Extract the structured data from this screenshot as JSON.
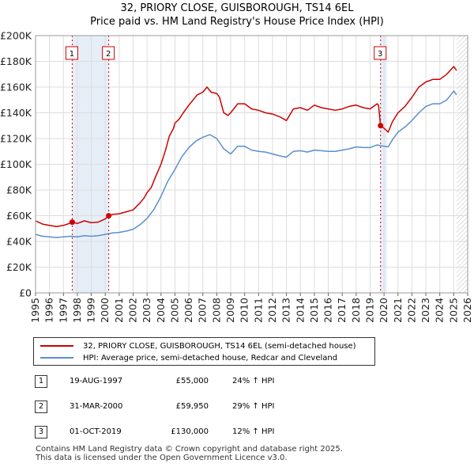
{
  "chart_data": {
    "type": "line",
    "title": "32, PRIORY CLOSE, GUISBOROUGH, TS14 6EL",
    "subtitle": "Price paid vs. HM Land Registry's House Price Index (HPI)",
    "xlabel": "",
    "ylabel": "",
    "xlim": [
      1995,
      2026
    ],
    "ylim": [
      0,
      200000
    ],
    "grid": true,
    "x_ticks": [
      "1995",
      "1996",
      "1997",
      "1998",
      "1999",
      "2000",
      "2001",
      "2002",
      "2003",
      "2004",
      "2005",
      "2006",
      "2007",
      "2008",
      "2009",
      "2010",
      "2011",
      "2012",
      "2013",
      "2014",
      "2015",
      "2016",
      "2017",
      "2018",
      "2019",
      "2020",
      "2021",
      "2022",
      "2023",
      "2024",
      "2025",
      "2026"
    ],
    "y_ticks": [
      "£0",
      "£20K",
      "£40K",
      "£60K",
      "£80K",
      "£100K",
      "£120K",
      "£140K",
      "£160K",
      "£180K",
      "£200K"
    ],
    "y_tick_values": [
      0,
      20000,
      40000,
      60000,
      80000,
      100000,
      120000,
      140000,
      160000,
      180000,
      200000
    ],
    "series": [
      {
        "name": "32, PRIORY CLOSE, GUISBOROUGH, TS14 6EL (semi-detached house)",
        "color": "#cc0000",
        "points": [
          [
            1995.0,
            56000
          ],
          [
            1995.5,
            53500
          ],
          [
            1996.0,
            52500
          ],
          [
            1996.5,
            51500
          ],
          [
            1997.0,
            52500
          ],
          [
            1997.3,
            53500
          ],
          [
            1997.63,
            55000
          ],
          [
            1998.0,
            54000
          ],
          [
            1998.5,
            56000
          ],
          [
            1999.0,
            54500
          ],
          [
            1999.5,
            55000
          ],
          [
            2000.0,
            57500
          ],
          [
            2000.25,
            59950
          ],
          [
            2000.5,
            61000
          ],
          [
            2001.0,
            61500
          ],
          [
            2001.5,
            63000
          ],
          [
            2002.0,
            64500
          ],
          [
            2002.5,
            70000
          ],
          [
            2002.8,
            74000
          ],
          [
            2003.0,
            78000
          ],
          [
            2003.3,
            82000
          ],
          [
            2003.6,
            90000
          ],
          [
            2004.0,
            100000
          ],
          [
            2004.3,
            110000
          ],
          [
            2004.6,
            122000
          ],
          [
            2004.9,
            128000
          ],
          [
            2005.0,
            132000
          ],
          [
            2005.3,
            135000
          ],
          [
            2005.6,
            140000
          ],
          [
            2006.0,
            146000
          ],
          [
            2006.3,
            150000
          ],
          [
            2006.6,
            154000
          ],
          [
            2007.0,
            156000
          ],
          [
            2007.3,
            160000
          ],
          [
            2007.6,
            156000
          ],
          [
            2008.0,
            155000
          ],
          [
            2008.2,
            152000
          ],
          [
            2008.5,
            140000
          ],
          [
            2008.8,
            138000
          ],
          [
            2009.0,
            140000
          ],
          [
            2009.5,
            147000
          ],
          [
            2010.0,
            147000
          ],
          [
            2010.5,
            143000
          ],
          [
            2011.0,
            142000
          ],
          [
            2011.5,
            140000
          ],
          [
            2012.0,
            139000
          ],
          [
            2012.5,
            137000
          ],
          [
            2013.0,
            134000
          ],
          [
            2013.5,
            143000
          ],
          [
            2014.0,
            144000
          ],
          [
            2014.5,
            142000
          ],
          [
            2015.0,
            146000
          ],
          [
            2015.5,
            144000
          ],
          [
            2016.0,
            143000
          ],
          [
            2016.5,
            142000
          ],
          [
            2017.0,
            143000
          ],
          [
            2017.5,
            145000
          ],
          [
            2018.0,
            146000
          ],
          [
            2018.5,
            144000
          ],
          [
            2019.0,
            143000
          ],
          [
            2019.5,
            147000
          ],
          [
            2019.6,
            146000
          ],
          [
            2019.75,
            130000
          ],
          [
            2020.0,
            128000
          ],
          [
            2020.3,
            125000
          ],
          [
            2020.6,
            133000
          ],
          [
            2021.0,
            140000
          ],
          [
            2021.5,
            145000
          ],
          [
            2022.0,
            152000
          ],
          [
            2022.5,
            160000
          ],
          [
            2023.0,
            164000
          ],
          [
            2023.5,
            166000
          ],
          [
            2024.0,
            166000
          ],
          [
            2024.5,
            170000
          ],
          [
            2025.0,
            176000
          ],
          [
            2025.2,
            173000
          ]
        ]
      },
      {
        "name": "HPI: Average price, semi-detached house, Redcar and Cleveland",
        "color": "#5b8fcc",
        "points": [
          [
            1995.0,
            45500
          ],
          [
            1995.5,
            44000
          ],
          [
            1996.0,
            43500
          ],
          [
            1996.5,
            43000
          ],
          [
            1997.0,
            43500
          ],
          [
            1997.5,
            44000
          ],
          [
            1998.0,
            43500
          ],
          [
            1998.5,
            44500
          ],
          [
            1999.0,
            44000
          ],
          [
            1999.5,
            44500
          ],
          [
            2000.0,
            45500
          ],
          [
            2000.5,
            46500
          ],
          [
            2001.0,
            47000
          ],
          [
            2001.5,
            48000
          ],
          [
            2002.0,
            49500
          ],
          [
            2002.5,
            53000
          ],
          [
            2003.0,
            58000
          ],
          [
            2003.5,
            65000
          ],
          [
            2004.0,
            75000
          ],
          [
            2004.5,
            87000
          ],
          [
            2005.0,
            96000
          ],
          [
            2005.5,
            106000
          ],
          [
            2006.0,
            113000
          ],
          [
            2006.5,
            118000
          ],
          [
            2007.0,
            121000
          ],
          [
            2007.5,
            123000
          ],
          [
            2008.0,
            120000
          ],
          [
            2008.5,
            112000
          ],
          [
            2009.0,
            108000
          ],
          [
            2009.5,
            114000
          ],
          [
            2010.0,
            114000
          ],
          [
            2010.5,
            111000
          ],
          [
            2011.0,
            110000
          ],
          [
            2011.5,
            109500
          ],
          [
            2012.0,
            108000
          ],
          [
            2012.5,
            106500
          ],
          [
            2013.0,
            105500
          ],
          [
            2013.5,
            110000
          ],
          [
            2014.0,
            110500
          ],
          [
            2014.5,
            109500
          ],
          [
            2015.0,
            111000
          ],
          [
            2015.5,
            110500
          ],
          [
            2016.0,
            110000
          ],
          [
            2016.5,
            110000
          ],
          [
            2017.0,
            111000
          ],
          [
            2017.5,
            112000
          ],
          [
            2018.0,
            113500
          ],
          [
            2018.5,
            113000
          ],
          [
            2019.0,
            113000
          ],
          [
            2019.5,
            115000
          ],
          [
            2020.0,
            114000
          ],
          [
            2020.3,
            113500
          ],
          [
            2020.6,
            119000
          ],
          [
            2021.0,
            125000
          ],
          [
            2021.5,
            129000
          ],
          [
            2022.0,
            134000
          ],
          [
            2022.5,
            140000
          ],
          [
            2023.0,
            145000
          ],
          [
            2023.5,
            147000
          ],
          [
            2024.0,
            147000
          ],
          [
            2024.5,
            150000
          ],
          [
            2025.0,
            157000
          ],
          [
            2025.2,
            154000
          ]
        ]
      }
    ],
    "sale_markers": [
      {
        "label": "1",
        "x": 1997.63,
        "y": 55000
      },
      {
        "label": "2",
        "x": 2000.25,
        "y": 59950
      },
      {
        "label": "3",
        "x": 2019.75,
        "y": 130000
      }
    ],
    "shaded_spans": [
      [
        1997.63,
        2000.25
      ],
      [
        2019.75,
        2020.2
      ]
    ],
    "future_hatch_start": 2025.2
  },
  "legend": {
    "property_label": "32, PRIORY CLOSE, GUISBOROUGH, TS14 6EL (semi-detached house)",
    "hpi_label": "HPI: Average price, semi-detached house, Redcar and Cleveland",
    "property_color": "#cc0000",
    "hpi_color": "#5b8fcc"
  },
  "sales": [
    {
      "num": "1",
      "date": "19-AUG-1997",
      "price": "£55,000",
      "hpi": "24% ↑ HPI"
    },
    {
      "num": "2",
      "date": "31-MAR-2000",
      "price": "£59,950",
      "hpi": "29% ↑ HPI"
    },
    {
      "num": "3",
      "date": "01-OCT-2019",
      "price": "£130,000",
      "hpi": "12% ↑ HPI"
    }
  ],
  "footer": {
    "line1": "Contains HM Land Registry data © Crown copyright and database right 2025.",
    "line2": "This data is licensed under the Open Government Licence v3.0."
  }
}
